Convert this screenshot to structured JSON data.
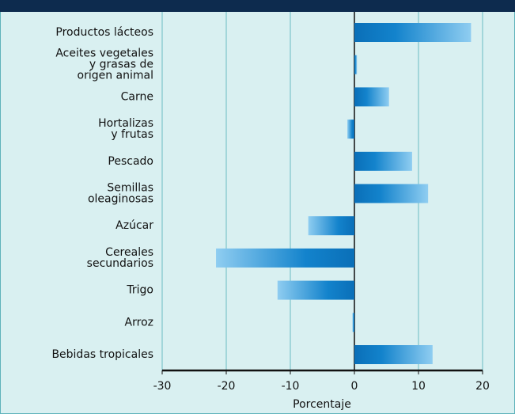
{
  "chart_data": {
    "type": "barh",
    "categories": [
      "Productos lácteos",
      "Aceites vegetales\ny grasas de\norigen animal",
      "Carne",
      "Hortalizas\ny frutas",
      "Pescado",
      "Semillas\noleaginosas",
      "Azúcar",
      "Cereales\nsecundarios",
      "Trigo",
      "Arroz",
      "Bebidas tropicales"
    ],
    "values": [
      18.2,
      0.4,
      5.4,
      -1.1,
      9.0,
      11.5,
      -7.2,
      -21.6,
      -12.0,
      -0.3,
      12.2
    ],
    "color": "#0a6fb8",
    "xlim": [
      -30,
      20
    ],
    "xticks": [
      -30,
      -20,
      -10,
      0,
      10,
      20
    ],
    "xlabel": "Porcentaje",
    "grid": true
  }
}
